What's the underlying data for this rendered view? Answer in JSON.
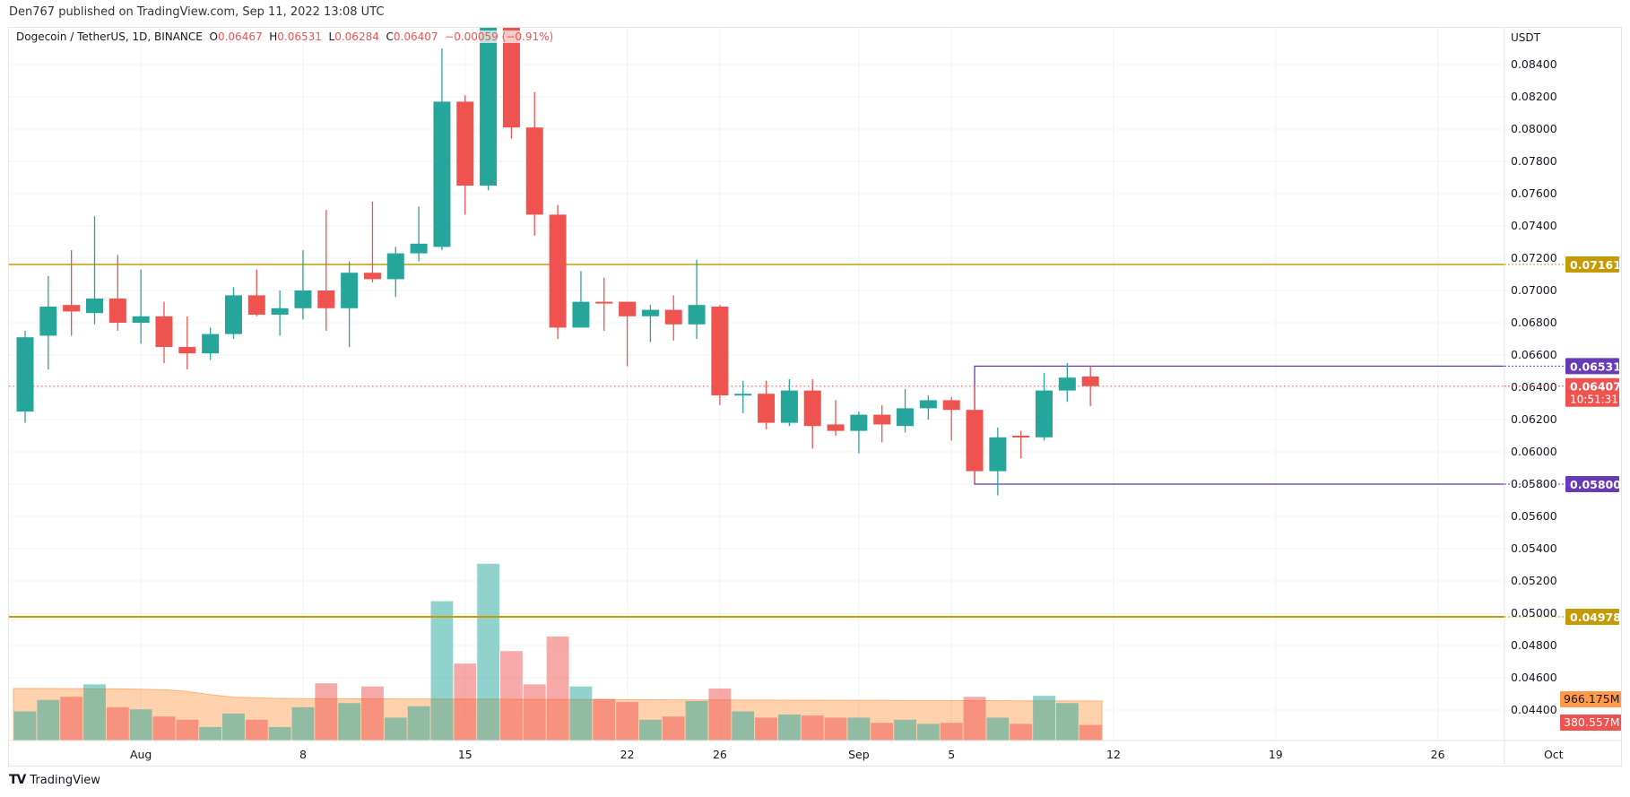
{
  "published": "Den767 published on TradingView.com, Sep 11, 2022 13:08 UTC",
  "legend": {
    "symbol": "Dogecoin / TetherUS, 1D, BINANCE",
    "o_label": "O",
    "o": "0.06467",
    "h_label": "H",
    "h": "0.06531",
    "l_label": "L",
    "l": "0.06284",
    "c_label": "C",
    "c": "0.06407",
    "change": "−0.00059 (−0.91%)"
  },
  "brand": "TradingView",
  "colors": {
    "up": "#26a69a",
    "down": "#ef5350",
    "gold": "#c49a06",
    "purple": "#673ab7",
    "ma": "#ff9a4a",
    "grid": "#f0f3fa"
  },
  "chart_data": {
    "type": "candlestick",
    "currency": "USDT",
    "y_ticks": [
      "0.08400",
      "0.08200",
      "0.08000",
      "0.07800",
      "0.07600",
      "0.07400",
      "0.07200",
      "0.07000",
      "0.06800",
      "0.06600",
      "0.06400",
      "0.06200",
      "0.06000",
      "0.05800",
      "0.05600",
      "0.05400",
      "0.05200",
      "0.05000",
      "0.04800",
      "0.04600",
      "0.04400"
    ],
    "x_ticks": [
      {
        "label": "Aug",
        "date": "2022-08-01"
      },
      {
        "label": "8",
        "date": "2022-08-08"
      },
      {
        "label": "15",
        "date": "2022-08-15"
      },
      {
        "label": "22",
        "date": "2022-08-22"
      },
      {
        "label": "26",
        "date": "2022-08-26"
      },
      {
        "label": "Sep",
        "date": "2022-09-01"
      },
      {
        "label": "5",
        "date": "2022-09-05"
      },
      {
        "label": "12",
        "date": "2022-09-12"
      },
      {
        "label": "19",
        "date": "2022-09-19"
      },
      {
        "label": "26",
        "date": "2022-09-26"
      },
      {
        "label": "Oct",
        "date": "2022-10-01"
      }
    ],
    "first_date": "2022-07-27",
    "candles": [
      [
        0.0625,
        0.0675,
        0.0618,
        0.0671
      ],
      [
        0.0672,
        0.0709,
        0.0651,
        0.069
      ],
      [
        0.0691,
        0.0725,
        0.0672,
        0.0687
      ],
      [
        0.0686,
        0.0746,
        0.0679,
        0.0695
      ],
      [
        0.0695,
        0.0722,
        0.0675,
        0.068
      ],
      [
        0.068,
        0.0713,
        0.0667,
        0.0684
      ],
      [
        0.0684,
        0.0693,
        0.0655,
        0.0665
      ],
      [
        0.0665,
        0.0684,
        0.0651,
        0.0661
      ],
      [
        0.0661,
        0.0677,
        0.0657,
        0.0673
      ],
      [
        0.0673,
        0.0702,
        0.067,
        0.0697
      ],
      [
        0.0697,
        0.0713,
        0.0684,
        0.0685
      ],
      [
        0.0685,
        0.07,
        0.0672,
        0.0689
      ],
      [
        0.0689,
        0.0725,
        0.0682,
        0.07
      ],
      [
        0.07,
        0.075,
        0.0675,
        0.0689
      ],
      [
        0.0689,
        0.0718,
        0.0665,
        0.0711
      ],
      [
        0.0711,
        0.0755,
        0.0705,
        0.0707
      ],
      [
        0.0707,
        0.0727,
        0.0696,
        0.0723
      ],
      [
        0.0723,
        0.0752,
        0.0718,
        0.0729
      ],
      [
        0.0727,
        0.085,
        0.0725,
        0.0817
      ],
      [
        0.0817,
        0.0821,
        0.0747,
        0.0765
      ],
      [
        0.0765,
        0.092,
        0.0762,
        0.088
      ],
      [
        0.088,
        0.089,
        0.0794,
        0.0801
      ],
      [
        0.0801,
        0.0823,
        0.0734,
        0.0747
      ],
      [
        0.0747,
        0.0753,
        0.067,
        0.0677
      ],
      [
        0.0677,
        0.0712,
        0.0677,
        0.0693
      ],
      [
        0.0693,
        0.0708,
        0.0675,
        0.0692
      ],
      [
        0.0693,
        0.0693,
        0.0653,
        0.0684
      ],
      [
        0.0684,
        0.0691,
        0.0668,
        0.0688
      ],
      [
        0.0688,
        0.0697,
        0.0669,
        0.0679
      ],
      [
        0.0679,
        0.0719,
        0.067,
        0.0691
      ],
      [
        0.069,
        0.0691,
        0.0629,
        0.0635
      ],
      [
        0.0635,
        0.0644,
        0.0624,
        0.0636
      ],
      [
        0.0636,
        0.0644,
        0.0614,
        0.0618
      ],
      [
        0.0618,
        0.0645,
        0.0616,
        0.0638
      ],
      [
        0.0638,
        0.0645,
        0.0602,
        0.0616
      ],
      [
        0.0617,
        0.0632,
        0.061,
        0.0613
      ],
      [
        0.0613,
        0.0625,
        0.0599,
        0.0623
      ],
      [
        0.0623,
        0.0629,
        0.0606,
        0.0617
      ],
      [
        0.0616,
        0.0639,
        0.0612,
        0.0627
      ],
      [
        0.0627,
        0.0635,
        0.062,
        0.0632
      ],
      [
        0.0632,
        0.0634,
        0.0607,
        0.0626
      ],
      [
        0.0626,
        0.0641,
        0.0581,
        0.0588
      ],
      [
        0.0588,
        0.0615,
        0.0573,
        0.0609
      ],
      [
        0.061,
        0.0613,
        0.0596,
        0.0609
      ],
      [
        0.0609,
        0.0649,
        0.0607,
        0.0638
      ],
      [
        0.0638,
        0.0655,
        0.0631,
        0.0646
      ],
      [
        0.06467,
        0.06531,
        0.06284,
        0.06407
      ]
    ],
    "volume_m": [
      711,
      991,
      1067,
      1372,
      813,
      762,
      584,
      508,
      330,
      660,
      508,
      330,
      813,
      1397,
      914,
      1321,
      559,
      838,
      3404,
      1880,
      4318,
      2184,
      1372,
      2540,
      1321,
      1016,
      940,
      508,
      584,
      965,
      1270,
      711,
      559,
      635,
      610,
      559,
      559,
      432,
      508,
      406,
      432,
      1067,
      559,
      406,
      1092,
      914,
      381
    ],
    "volume_ma_m": [
      1270,
      1270,
      1268,
      1265,
      1262,
      1255,
      1240,
      1200,
      1120,
      1060,
      1040,
      1030,
      1025,
      1020,
      1020,
      1018,
      1016,
      1015,
      1012,
      1012,
      1010,
      1008,
      1005,
      1004,
      1002,
      1000,
      998,
      996,
      994,
      992,
      990,
      989,
      988,
      986,
      985,
      984,
      982,
      980,
      978,
      976,
      975,
      974,
      972,
      970,
      969,
      968,
      966.175
    ],
    "horizontal_lines": [
      {
        "price": "0.07161",
        "color": "#c49a06"
      },
      {
        "price": "0.04978",
        "color": "#c49a06"
      }
    ],
    "range_box": {
      "start_date": "2022-09-06",
      "top": "0.06531",
      "bottom": "0.05800",
      "color": "#673ab7"
    },
    "last_price": "0.06407",
    "countdown": "10:51:31",
    "volume_ma_label": "966.175M",
    "volume_label": "380.557M"
  }
}
